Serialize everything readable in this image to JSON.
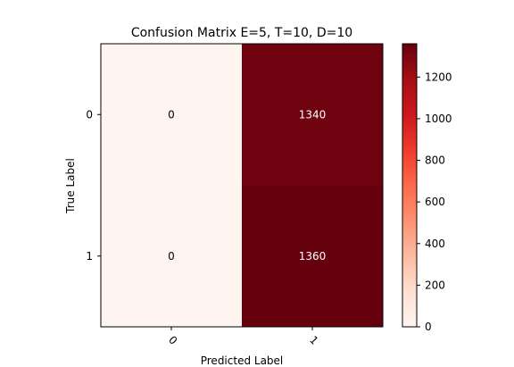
{
  "chart_data": {
    "type": "heatmap",
    "title": "Confusion Matrix E=5, T=10, D=10",
    "xlabel": "Predicted Label",
    "ylabel": "True Label",
    "x_categories": [
      "0",
      "1"
    ],
    "y_categories": [
      "0",
      "1"
    ],
    "matrix": [
      [
        0,
        1340
      ],
      [
        0,
        1360
      ]
    ],
    "colormap": "Reds",
    "colorbar": {
      "range": [
        0,
        1360
      ],
      "ticks": [
        0,
        200,
        400,
        600,
        800,
        1000,
        1200
      ]
    },
    "x_tick_rotation_deg": 45,
    "grid": false
  }
}
